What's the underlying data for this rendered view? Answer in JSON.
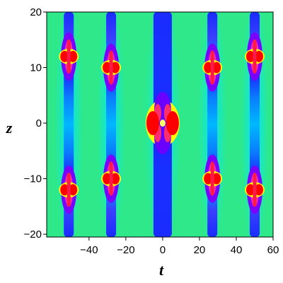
{
  "chart_data": {
    "type": "heatmap",
    "title": "",
    "xlabel": "t",
    "ylabel": "z",
    "xlim": [
      -63,
      60
    ],
    "ylim": [
      -20.5,
      20
    ],
    "x_ticks": [
      -40,
      -20,
      0,
      20,
      40,
      60
    ],
    "x_tick_labels": [
      "−40",
      "−20",
      "0",
      "20",
      "40",
      "60"
    ],
    "y_ticks": [
      -20,
      -10,
      0,
      10,
      20
    ],
    "y_tick_labels": [
      "−20",
      "−10",
      "0",
      "10",
      "20"
    ],
    "grid": false,
    "colormap": [
      "#0000ff",
      "#00ffff",
      "#00ff00",
      "#ffff00",
      "#ff0000",
      "#ff00ff"
    ],
    "background_color": "#2ee88a",
    "peaks": [
      {
        "t": 0,
        "z": 0,
        "kind": "central"
      },
      {
        "t": -51,
        "z": 12,
        "kind": "side"
      },
      {
        "t": -28,
        "z": 10,
        "kind": "side"
      },
      {
        "t": 27,
        "z": 10,
        "kind": "side"
      },
      {
        "t": 50,
        "z": 12,
        "kind": "side"
      },
      {
        "t": -51,
        "z": -12,
        "kind": "side"
      },
      {
        "t": -28,
        "z": -10,
        "kind": "side"
      },
      {
        "t": 27,
        "z": -10,
        "kind": "side"
      },
      {
        "t": 50,
        "z": -12,
        "kind": "side"
      }
    ],
    "columns": [
      {
        "t": -51
      },
      {
        "t": -28
      },
      {
        "t": 0
      },
      {
        "t": 27
      },
      {
        "t": 50
      }
    ]
  }
}
